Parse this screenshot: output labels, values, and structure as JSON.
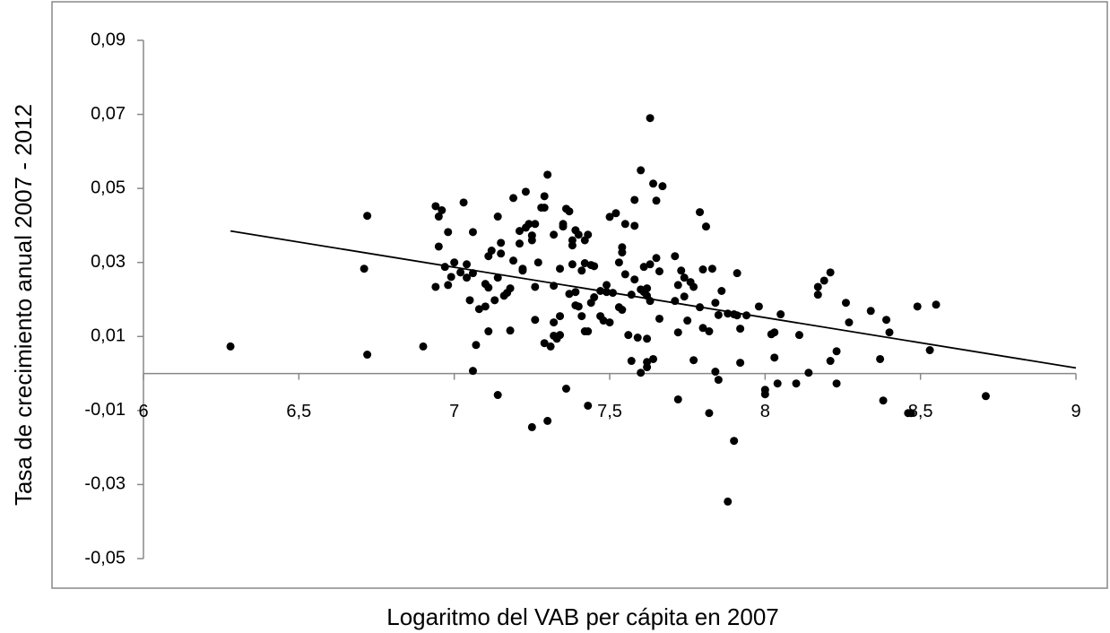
{
  "chart_data": {
    "type": "scatter",
    "ylabel": "Tasa de crecimiento anual 2007 - 2012",
    "xlabel": "Logaritmo del VAB per cápita en 2007",
    "color": "#000000",
    "x": [
      6.28,
      6.71,
      6.72,
      6.72,
      6.9,
      6.94,
      6.94,
      6.95,
      6.95,
      6.96,
      6.97,
      6.98,
      6.98,
      6.99,
      7.0,
      7.02,
      7.03,
      7.04,
      7.04,
      7.05,
      7.06,
      7.06,
      7.06,
      7.07,
      7.08,
      7.1,
      7.1,
      7.11,
      7.11,
      7.11,
      7.12,
      7.13,
      7.14,
      7.14,
      7.14,
      7.15,
      7.15,
      7.16,
      7.17,
      7.18,
      7.18,
      7.19,
      7.19,
      7.21,
      7.21,
      7.22,
      7.22,
      7.23,
      7.23,
      7.24,
      7.25,
      7.25,
      7.25,
      7.26,
      7.26,
      7.26,
      7.27,
      7.28,
      7.29,
      7.29,
      7.29,
      7.3,
      7.3,
      7.31,
      7.32,
      7.32,
      7.32,
      7.32,
      7.33,
      7.34,
      7.34,
      7.34,
      7.35,
      7.35,
      7.36,
      7.36,
      7.37,
      7.37,
      7.38,
      7.38,
      7.38,
      7.39,
      7.39,
      7.39,
      7.4,
      7.4,
      7.41,
      7.41,
      7.42,
      7.42,
      7.42,
      7.43,
      7.43,
      7.43,
      7.44,
      7.44,
      7.45,
      7.45,
      7.47,
      7.47,
      7.48,
      7.49,
      7.49,
      7.5,
      7.5,
      7.51,
      7.52,
      7.53,
      7.53,
      7.54,
      7.54,
      7.54,
      7.55,
      7.55,
      7.56,
      7.57,
      7.58,
      7.58,
      7.58,
      7.57,
      7.59,
      7.6,
      7.6,
      7.6,
      7.61,
      7.61,
      7.62,
      7.62,
      7.62,
      7.62,
      7.62,
      7.63,
      7.63,
      7.63,
      7.64,
      7.64,
      7.65,
      7.65,
      7.66,
      7.66,
      7.67,
      7.71,
      7.71,
      7.72,
      7.72,
      7.72,
      7.73,
      7.74,
      7.74,
      7.75,
      7.76,
      7.77,
      7.77,
      7.79,
      7.79,
      7.8,
      7.8,
      7.81,
      7.82,
      7.82,
      7.83,
      7.84,
      7.84,
      7.85,
      7.85,
      7.86,
      7.88,
      7.88,
      7.9,
      7.9,
      7.91,
      7.91,
      7.92,
      7.92,
      7.94,
      7.98,
      8.0,
      8.0,
      8.02,
      8.03,
      8.03,
      8.04,
      8.05,
      8.1,
      8.11,
      8.14,
      8.17,
      8.17,
      8.19,
      8.21,
      8.21,
      8.23,
      8.23,
      8.26,
      8.27,
      8.34,
      8.37,
      8.38,
      8.39,
      8.4,
      8.46,
      8.47,
      8.49,
      8.53,
      8.55,
      8.71
    ],
    "values": [
      0.0073,
      0.0283,
      0.0426,
      0.0051,
      0.0073,
      0.0452,
      0.0234,
      0.0424,
      0.0343,
      0.0441,
      0.0288,
      0.0382,
      0.0239,
      0.0261,
      0.03,
      0.0273,
      0.0462,
      0.0295,
      0.0259,
      0.0198,
      0.0382,
      0.0271,
      0.0007,
      0.0077,
      0.0174,
      0.0242,
      0.0181,
      0.0317,
      0.0114,
      0.0232,
      0.0332,
      0.0198,
      0.0424,
      -0.0058,
      0.0259,
      0.0324,
      0.0353,
      0.021,
      0.0218,
      0.0116,
      0.023,
      0.0474,
      0.0305,
      0.0351,
      0.0385,
      0.0278,
      0.0283,
      0.0394,
      0.0491,
      0.0404,
      -0.0145,
      0.0373,
      0.036,
      0.0404,
      0.0145,
      0.0234,
      0.03,
      0.0448,
      0.0448,
      0.0082,
      0.0479,
      0.0537,
      -0.0128,
      0.0073,
      0.0375,
      0.0237,
      0.0102,
      0.0138,
      0.0094,
      0.0155,
      0.0104,
      0.0283,
      0.0404,
      0.0397,
      -0.0041,
      0.0445,
      0.0215,
      0.0438,
      0.0346,
      0.036,
      0.0295,
      0.022,
      0.0387,
      0.0184,
      0.0375,
      0.0181,
      0.0278,
      0.0155,
      0.036,
      0.0114,
      0.0298,
      -0.0087,
      0.0114,
      0.0375,
      0.0191,
      0.0293,
      0.029,
      0.0206,
      0.0223,
      0.0155,
      0.0143,
      0.022,
      0.0239,
      0.0423,
      0.0138,
      0.0218,
      0.0433,
      0.03,
      0.0179,
      0.0172,
      0.0327,
      0.0341,
      0.0268,
      0.0404,
      0.0104,
      0.0213,
      0.0469,
      0.0254,
      0.0399,
      0.0034,
      0.0097,
      0.0002,
      0.0227,
      0.0549,
      0.0288,
      0.022,
      0.0094,
      0.0017,
      0.0031,
      0.021,
      0.023,
      0.069,
      0.0196,
      0.0295,
      0.0513,
      0.0039,
      0.0467,
      0.0312,
      0.0148,
      0.0276,
      0.0506,
      0.0317,
      0.0196,
      0.0239,
      -0.007,
      0.0111,
      0.0278,
      0.0259,
      0.0208,
      0.0143,
      0.0247,
      0.0234,
      0.0036,
      0.0179,
      0.0436,
      0.0281,
      0.0123,
      0.0397,
      -0.0107,
      0.0114,
      0.0283,
      0.0191,
      0.0005,
      -0.0017,
      0.0158,
      0.0223,
      0.0162,
      -0.0346,
      -0.0182,
      0.016,
      0.0157,
      0.0271,
      0.0121,
      0.0029,
      0.0157,
      0.0181,
      -0.0056,
      -0.0044,
      0.0106,
      0.0111,
      0.0043,
      -0.0027,
      0.016,
      -0.0027,
      0.0104,
      0.0002,
      0.0213,
      0.0234,
      0.0251,
      0.0034,
      0.0273,
      0.006,
      -0.0027,
      0.0191,
      0.0138,
      0.0169,
      0.0039,
      -0.0073,
      0.0145,
      0.0111,
      -0.0107,
      -0.0107,
      0.0181,
      0.0063,
      0.0186,
      -0.0061
    ],
    "trendline": {
      "x": [
        6.28,
        9
      ],
      "values": [
        0.0385,
        0.0015
      ]
    },
    "xlim": [
      6,
      9
    ],
    "ylim": [
      -0.05,
      0.09
    ],
    "xticks": [
      6,
      {
        "value": 6.5,
        "label": "6,5"
      },
      7,
      {
        "value": 7.5,
        "label": "7,5"
      },
      8,
      {
        "value": 8.5,
        "label": "8,5"
      },
      9
    ],
    "yticks": [
      {
        "value": -0.05,
        "label": "-0,05"
      },
      {
        "value": -0.03,
        "label": "-0,03"
      },
      {
        "value": -0.01,
        "label": "-0,01"
      },
      {
        "value": 0.01,
        "label": "0,01"
      },
      {
        "value": 0.03,
        "label": "0,03"
      },
      {
        "value": 0.05,
        "label": "0,05"
      },
      {
        "value": 0.07,
        "label": "0,07"
      },
      {
        "value": 0.09,
        "label": "0,09"
      }
    ]
  }
}
